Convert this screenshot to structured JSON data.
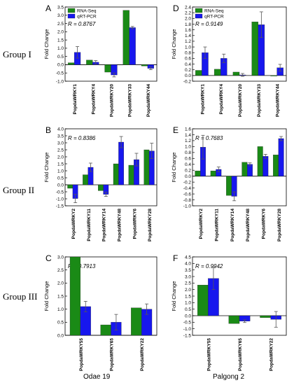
{
  "figure": {
    "group_labels": [
      "Group I",
      "Group II",
      "Group III"
    ],
    "footer_labels": [
      "Odae 19",
      "Palgong 2"
    ],
    "colors": {
      "rna_seq": "#1a8a16",
      "qrt_pcr": "#1717ee",
      "error": "#555555",
      "axis": "#000000"
    }
  },
  "chart_data": [
    {
      "panel": "A",
      "type": "bar",
      "r_label": "R = 0.8767",
      "ylabel": "Fold Change",
      "ylim": [
        -1.0,
        3.5
      ],
      "yticks": [
        -1.0,
        -0.5,
        0.0,
        0.5,
        1.0,
        1.5,
        2.0,
        2.5,
        3.0,
        3.5
      ],
      "legend": [
        "RNA-Seq",
        "qRT-PCR"
      ],
      "categories": [
        "PopdaWRKY1",
        "PopdaWRKY4",
        "PopdaWRKY20",
        "PopdaWRKY33",
        "PopdaWRKY44"
      ],
      "series": [
        {
          "name": "RNA-Seq",
          "values": [
            0.12,
            0.28,
            -0.45,
            3.3,
            -0.08
          ]
        },
        {
          "name": "qRT-PCR",
          "values": [
            0.75,
            0.15,
            -0.62,
            2.25,
            -0.22
          ],
          "errors": [
            0.35,
            0.1,
            0.12,
            0.07,
            0.08
          ]
        }
      ]
    },
    {
      "panel": "D",
      "type": "bar",
      "r_label": "R = 0.9149",
      "ylabel": "Fold Change",
      "ylim": [
        -0.2,
        2.4
      ],
      "yticks": [
        -0.2,
        0.0,
        0.2,
        0.4,
        0.6,
        0.8,
        1.0,
        1.2,
        1.4,
        1.6,
        1.8,
        2.0,
        2.2,
        2.4
      ],
      "legend": [
        "RNA-Seq",
        "qRT-PCR"
      ],
      "categories": [
        "PopdaWRKY1",
        "PopdaWRKY4",
        "PopdaWRKY20",
        "PopdaWRKY33",
        "PopdaWRKY44"
      ],
      "series": [
        {
          "name": "RNA-Seq",
          "values": [
            0.18,
            0.22,
            0.12,
            1.88,
            0.0
          ]
        },
        {
          "name": "qRT-PCR",
          "values": [
            0.8,
            0.6,
            0.02,
            1.78,
            0.27
          ],
          "errors": [
            0.2,
            0.15,
            0.05,
            0.45,
            0.12
          ]
        }
      ]
    },
    {
      "panel": "B",
      "type": "bar",
      "r_label": "R = 0.8386",
      "ylabel": "Fold Change",
      "ylim": [
        -1.5,
        4.0
      ],
      "yticks": [
        -1.5,
        -1.0,
        -0.5,
        0.0,
        0.5,
        1.0,
        1.5,
        2.0,
        2.5,
        3.0,
        3.5,
        4.0
      ],
      "categories": [
        "PopdaWRKY2",
        "PopdaWRKY11",
        "PopdaWRKY14",
        "PopdaWRKY48",
        "PopdaWRKY6",
        "PopdaWRKY28"
      ],
      "series": [
        {
          "name": "RNA-Seq",
          "values": [
            -0.25,
            0.72,
            -0.42,
            1.5,
            1.4,
            2.5
          ]
        },
        {
          "name": "qRT-PCR",
          "values": [
            -0.98,
            1.25,
            -0.68,
            3.05,
            1.8,
            2.42
          ],
          "errors": [
            0.3,
            0.3,
            0.15,
            0.4,
            0.45,
            0.55
          ]
        }
      ]
    },
    {
      "panel": "E",
      "type": "bar",
      "r_label": "R = 0.7683",
      "ylabel": "Fold Change",
      "ylim": [
        -1.0,
        1.6
      ],
      "yticks": [
        -1.0,
        -0.8,
        -0.6,
        -0.4,
        -0.2,
        0.0,
        0.2,
        0.4,
        0.6,
        0.8,
        1.0,
        1.2,
        1.4,
        1.6
      ],
      "categories": [
        "PopdaWRKY2",
        "PopdaWRKY11",
        "PopdaWRKY14",
        "PopdaWRKY48",
        "PopdaWRKY6",
        "PopdaWRKY28"
      ],
      "series": [
        {
          "name": "RNA-Seq",
          "values": [
            0.18,
            0.18,
            -0.65,
            0.47,
            1.0,
            0.72
          ]
        },
        {
          "name": "qRT-PCR",
          "values": [
            0.98,
            0.23,
            -0.68,
            0.4,
            0.67,
            1.27
          ],
          "errors": [
            0.4,
            0.08,
            0.15,
            0.05,
            0.07,
            0.07
          ]
        }
      ]
    },
    {
      "panel": "C",
      "type": "bar",
      "r_label": "R = 0.7913",
      "ylabel": "Fold Change",
      "ylim": [
        0.0,
        3.0
      ],
      "yticks": [
        0.0,
        0.5,
        1.0,
        1.5,
        2.0,
        2.5,
        3.0
      ],
      "categories": [
        "PopdaWRKY55",
        "PopdaWRKY65",
        "PopdaWRKY22"
      ],
      "series": [
        {
          "name": "RNA-Seq",
          "values": [
            3.0,
            0.4,
            1.05
          ]
        },
        {
          "name": "qRT-PCR",
          "values": [
            1.1,
            0.5,
            1.0
          ],
          "errors": [
            0.2,
            0.3,
            0.2
          ]
        }
      ]
    },
    {
      "panel": "F",
      "type": "bar",
      "r_label": "R = 0.9942",
      "ylabel": "Fold Change",
      "ylim": [
        -1.5,
        4.5
      ],
      "yticks": [
        -1.5,
        -1.0,
        -0.5,
        0.0,
        0.5,
        1.0,
        1.5,
        2.0,
        2.5,
        3.0,
        3.5,
        4.0,
        4.5
      ],
      "categories": [
        "PopdaWRKY55",
        "PopdaWRKY65",
        "PopdaWRKY22"
      ],
      "series": [
        {
          "name": "RNA-Seq",
          "values": [
            2.35,
            -0.6,
            -0.15
          ]
        },
        {
          "name": "qRT-PCR",
          "values": [
            2.85,
            -0.42,
            -0.28
          ],
          "errors": [
            0.85,
            0.1,
            0.6
          ]
        }
      ]
    }
  ]
}
